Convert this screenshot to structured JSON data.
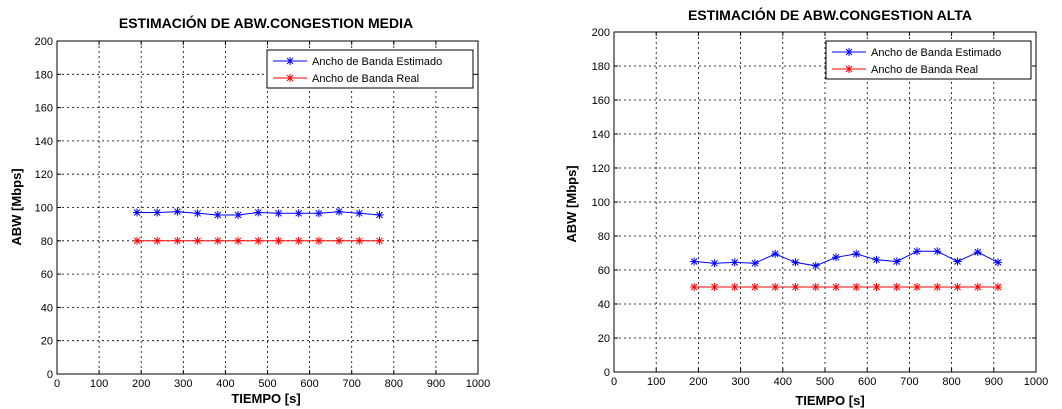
{
  "chart_data": [
    {
      "type": "line",
      "title": "ESTIMACIÓN DE ABW.CONGESTION MEDIA",
      "xlabel": "TIEMPO [s]",
      "ylabel": "ABW [Mbps]",
      "xlim": [
        0,
        1000
      ],
      "ylim": [
        0,
        200
      ],
      "xticks": [
        0,
        100,
        200,
        300,
        400,
        500,
        600,
        700,
        800,
        900,
        1000
      ],
      "yticks": [
        0,
        20,
        40,
        60,
        80,
        100,
        120,
        140,
        160,
        180,
        200
      ],
      "grid": true,
      "legend_position": "top-right",
      "series": [
        {
          "name": "Ancho de Banda Estimado",
          "color": "#0000ff",
          "x": [
            190,
            238,
            286,
            334,
            382,
            430,
            478,
            526,
            574,
            622,
            670,
            718,
            766
          ],
          "y": [
            97,
            97,
            97.5,
            96.5,
            95.5,
            95.5,
            97,
            96.5,
            96.5,
            96.5,
            97.5,
            96.5,
            95.5
          ]
        },
        {
          "name": "Ancho de Banda Real",
          "color": "#ff0000",
          "x": [
            190,
            238,
            286,
            334,
            382,
            430,
            478,
            526,
            574,
            622,
            670,
            718,
            766
          ],
          "y": [
            80,
            80,
            80,
            80,
            80,
            80,
            80,
            80,
            80,
            80,
            80,
            80,
            80
          ]
        }
      ]
    },
    {
      "type": "line",
      "title": "ESTIMACIÓN DE ABW.CONGESTION ALTA",
      "xlabel": "TIEMPO [s]",
      "ylabel": "ABW [Mbps]",
      "xlim": [
        0,
        1000
      ],
      "ylim": [
        0,
        200
      ],
      "xticks": [
        0,
        100,
        200,
        300,
        400,
        500,
        600,
        700,
        800,
        900,
        1000
      ],
      "yticks": [
        0,
        20,
        40,
        60,
        80,
        100,
        120,
        140,
        160,
        180,
        200
      ],
      "grid": true,
      "legend_position": "top-right",
      "series": [
        {
          "name": "Ancho de Banda Estimado",
          "color": "#0000ff",
          "x": [
            190,
            238,
            286,
            334,
            382,
            430,
            478,
            526,
            574,
            622,
            670,
            718,
            766,
            814,
            862,
            910
          ],
          "y": [
            65,
            64,
            64.5,
            64,
            69.5,
            64.5,
            62.5,
            67.5,
            69.5,
            66,
            65,
            71,
            71,
            65,
            70.5,
            64.5
          ]
        },
        {
          "name": "Ancho de Banda Real",
          "color": "#ff0000",
          "x": [
            190,
            238,
            286,
            334,
            382,
            430,
            478,
            526,
            574,
            622,
            670,
            718,
            766,
            814,
            862,
            910
          ],
          "y": [
            50,
            50,
            50,
            50,
            50,
            50,
            50,
            50,
            50,
            50,
            50,
            50,
            50,
            50,
            50,
            50
          ]
        }
      ]
    }
  ]
}
